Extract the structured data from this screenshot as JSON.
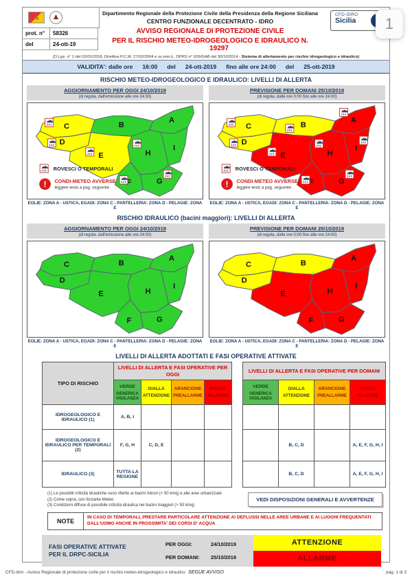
{
  "page_badge": "1",
  "header": {
    "dept_line1": "Dipartimento Regionale della Protezione Civile della Presidenza della Regione Siciliana",
    "dept_line2": "CENTRO FUNZIONALE DECENTRATO - IDRO",
    "cfd_line1": "CFD-IDRO",
    "cfd_line2": "Sicilia",
    "prot_label": "prot. n°",
    "prot_value": "58326",
    "del_label": "del",
    "del_value": "24-ott-19",
    "title_line1": "AVVISO REGIONALE DI PROTEZIONE CIVILE",
    "title_line2": "PER IL RISCHIO METEO-IDROGEOLOGICO E IDRAULICO N.",
    "title_number": "19297",
    "law_normal": "(D.Lgs. n° 1 del 02/01/2018, Direttiva P.C.M. 27/02/2004 e ss.mm.ii., DPRS n° 626/GAB del 30/10/2014 - ",
    "law_bold": "Sistema di allertamento per rischio idrogeologico e idraulico)"
  },
  "validity": {
    "parts": [
      "VALIDITA': dalle ore",
      "16:00",
      "del",
      "24-ott-2019",
      "fino alle ore 24:00",
      "del",
      "25-ott-2019"
    ]
  },
  "sections": {
    "meteo": {
      "title": "RISCHIO METEO-IDROGEOLOGICO E IDRAULICO: LIVELLI DI ALLERTA",
      "left_header": "AGGIORNAMENTO PER OGGI 24/10/2019",
      "left_sub": "(di regola, dall'emissione alle ore 24:00)",
      "right_header": "PREVISIONE PER DOMANI 25/10/2019",
      "right_sub": "(di regola, dalle ore 0:00 fino alle ore 24:00)",
      "caption": "EOLIE: ZONA A - USTICA, EGADI: ZONA C - PANTELLERIA: ZONA D - PELAGIE: ZONA E"
    },
    "idraulico": {
      "title": "RISCHIO IDRAULICO (bacini maggiori): LIVELLI DI ALLERTA",
      "left_header": "AGGIORNAMENTO PER OGGI 24/10/2019",
      "left_sub": "(di regola, dall'emissione alle ore 24:00)",
      "right_header": "PREVISIONE PER DOMANI 25/10/2019",
      "right_sub": "(di regola, dalle ore 0:00 fino alle ore 24:00)",
      "caption": "EOLIE: ZONA A - USTICA, EGADI: ZONA C - PANTELLERIA: ZONA D - PELAGIE: ZONA E"
    }
  },
  "map_legend": {
    "storm": "ROVESCI O TEMPORALI",
    "adverse": "CONDI-METEO AVVERSE",
    "adverse_sub": "leggere testo a pag. seguente"
  },
  "alert_colors": {
    "verde": "#2fd12f",
    "gialla": "#ffff00",
    "arancione": "#ffb100",
    "rossa": "#ff0000"
  },
  "maps": {
    "meteo_today": {
      "zones": {
        "A": "verde",
        "B": "verde",
        "C": "gialla",
        "D": "gialla",
        "E": "gialla",
        "F": "verde",
        "G": "verde",
        "H": "verde",
        "I": "verde"
      },
      "storm_icons": [
        "C",
        "D",
        "E",
        "H",
        "F",
        "G"
      ],
      "show_legend": true
    },
    "meteo_tomorrow": {
      "zones": {
        "A": "rossa",
        "B": "gialla",
        "C": "gialla",
        "D": "gialla",
        "E": "rossa",
        "F": "rossa",
        "G": "rossa",
        "H": "rossa",
        "I": "rossa"
      },
      "storm_icons": [
        "A",
        "B",
        "C",
        "D",
        "E",
        "H",
        "I",
        "F",
        "G"
      ],
      "show_legend": true
    },
    "idro_today": {
      "zones": {
        "A": "verde",
        "B": "verde",
        "C": "verde",
        "D": "verde",
        "E": "verde",
        "F": "verde",
        "G": "verde",
        "H": "verde",
        "I": "verde"
      },
      "storm_icons": [],
      "show_legend": false
    },
    "idro_tomorrow": {
      "zones": {
        "A": "rossa",
        "B": "gialla",
        "C": "gialla",
        "D": "gialla",
        "E": "rossa",
        "F": "rossa",
        "G": "rossa",
        "H": "rossa",
        "I": "rossa"
      },
      "storm_icons": [],
      "show_legend": false
    }
  },
  "tables": {
    "title": "LIVELLI DI ALLERTA ADOTTATI E FASI OPERATIVE ATTIVATE",
    "tipo_header": "TIPO DI RISCHIO",
    "today_header": "LIVELLI DI ALLERTA E FASI OPERATIVE PER OGGI",
    "domani_header": "LIVELLI DI ALLERTA E FASI OPERATIVE PER DOMANI",
    "levels": [
      {
        "name": "VERDE",
        "phase": "GENERICA VIGILANZA",
        "bg": "#57bb57",
        "fg": "#0e4a0e"
      },
      {
        "name": "GIALLA",
        "phase": "ATTENZIONE",
        "bg": "#ffff00",
        "fg": "#3b3b10"
      },
      {
        "name": "ARANCIONE",
        "phase": "PREALLARME",
        "bg": "#ffb100",
        "fg": "#9b1c00"
      },
      {
        "name": "ROSSA",
        "phase": "ALLARME",
        "bg": "#ff0000",
        "fg": "#a00000"
      }
    ],
    "rows_today": [
      {
        "risk": "IDROGEOLOGICO E IDRAULICO (1)",
        "verde": "A, B, I",
        "gialla": "",
        "arancione": "",
        "rossa": ""
      },
      {
        "risk": "IDROGEOLOGICO E IDRAULICO PER TEMPORALI (2)",
        "verde": "F, G, H",
        "gialla": "C, D, E",
        "arancione": "",
        "rossa": ""
      },
      {
        "risk": "IDRAULICO (3)",
        "verde": "TUTTA LA REGIONE",
        "gialla": "",
        "arancione": "",
        "rossa": ""
      }
    ],
    "rows_tomorrow": [
      {
        "verde": "",
        "gialla": "",
        "arancione": "",
        "rossa": ""
      },
      {
        "verde": "",
        "gialla": "B, C, D",
        "arancione": "",
        "rossa": "A, E, F, G, H, I"
      },
      {
        "verde": "",
        "gialla": "B, C, D",
        "arancione": "",
        "rossa": "A, E, F, G, H, I"
      }
    ],
    "footnotes": [
      "(1) Le possibili criticità idrauliche sono riferite ai bacini minori (< 50 kmq) e alle aree urbanizzate",
      "(2) Come sopra, con forzante Meteo",
      "(3) Condizioni diffuse di possibile criticità idraulica nei bacini maggiori (> 50 kmq)"
    ],
    "button": "VEDI DISPOSIZIONI GENERALI E AVVERTENZE",
    "note_label": "NOTE",
    "note_text": "IN CASO DI TEMPORALI, PRESTARE PARTICOLARE ATTENZIONE AI DEFLUSSI NELLE AREE URBANE E AI LUOGHI FREQUENTATI DALL'UOMO ANCHE IN PROSSIMITA' DEI CORSI D' ACQUA"
  },
  "phases": {
    "label_line1": "FASI OPERATIVE ATTIVATE",
    "label_line2": "PER IL DRPC-SICILIA",
    "today_label": "PER OGGI:",
    "today_date": "24/10/2019",
    "today_phase": "ATTENZIONE",
    "today_bg": "#ffff00",
    "today_fg": "#1a1a1a",
    "tomorrow_label": "PER DOMANI:",
    "tomorrow_date": "25/10/2019",
    "tomorrow_phase": "ALLARME",
    "tomorrow_bg": "#ff0000",
    "tomorrow_fg": "#8b0000"
  },
  "segue": "SEGUE AVVISO",
  "footer": {
    "left": "CFD-Idro - Avviso Regionale di protezione civile per il rischio meteo-idrogeologico e idraulico",
    "right": "pag. 1 di 3"
  }
}
